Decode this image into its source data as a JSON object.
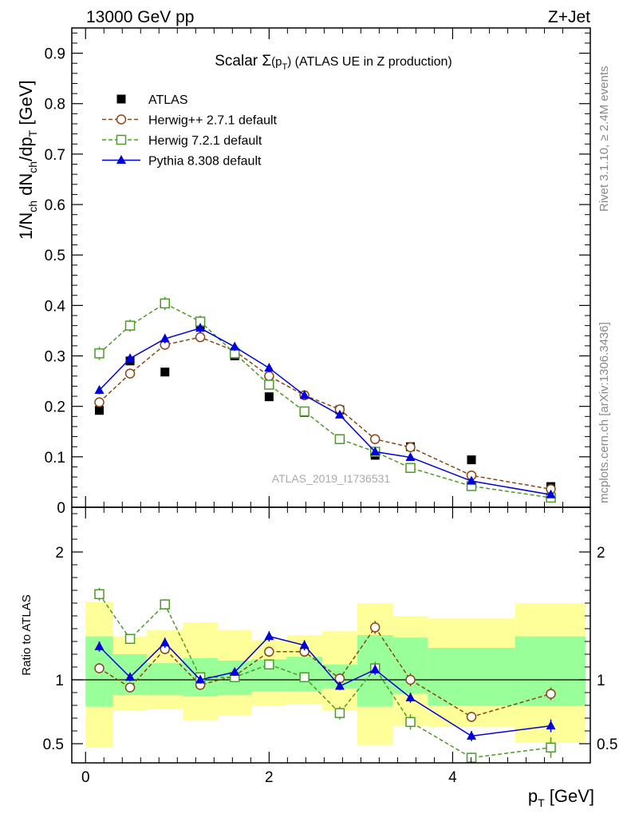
{
  "header": {
    "left": "13000 GeV pp",
    "right": "Z+Jet"
  },
  "side_labels": {
    "rivet": "Rivet 3.1.10, ≥ 2.4M events",
    "mcplots": "mcplots.cern.ch [arXiv:1306.3436]"
  },
  "watermark": "ATLAS_2019_I1736531",
  "chart_data": [
    {
      "type": "line",
      "panel": "main",
      "title": "Scalar Σ(pT) (ATLAS UE in Z production)",
      "title_parts": {
        "prefix": "Scalar ",
        "sigma": "Σ",
        "arg_open": "(p",
        "arg_sub": "T",
        "arg_close": ")",
        "suffix": " (ATLAS UE in Z production)"
      },
      "xlabel": "pT [GeV]",
      "xlabel_parts": {
        "main": "p",
        "sub": "T",
        "unit": " [GeV]"
      },
      "ylabel": "1/Nch dNch/dpT [GeV]",
      "xlim": [
        -0.15,
        5.5
      ],
      "ylim": [
        0,
        0.95
      ],
      "yticks": [
        0.1,
        0.2,
        0.3,
        0.4,
        0.5,
        0.6,
        0.7,
        0.8,
        0.9
      ],
      "ytick_labels": [
        "0.1",
        "0.2",
        "0.3",
        "0.4",
        "0.5",
        "0.6",
        "0.7",
        "0.8",
        "0.9"
      ],
      "ytick_zero_label": "0",
      "x": [
        0.15,
        0.485,
        0.865,
        1.25,
        1.625,
        2.0,
        2.385,
        2.77,
        3.155,
        3.54,
        4.205,
        5.07
      ],
      "legend_position": "top-left",
      "series": [
        {
          "name": "ATLAS",
          "label": "ATLAS",
          "color": "#000000",
          "marker": "filled-square",
          "line": "none",
          "values": [
            0.192,
            0.29,
            0.268,
            0.361,
            0.3,
            0.219,
            0.188,
            0.193,
            0.103,
            0.12,
            0.094,
            0.041
          ]
        },
        {
          "name": "Herwig++ 2.7.1 default",
          "label": "Herwig++ 2.7.1 default",
          "color": "#8b4513",
          "marker": "open-circle",
          "line": "dashed",
          "values": [
            0.208,
            0.265,
            0.322,
            0.337,
            0.31,
            0.26,
            0.222,
            0.194,
            0.135,
            0.119,
            0.063,
            0.036
          ],
          "errors": [
            0.007,
            0.007,
            0.008,
            0.008,
            0.008,
            0.007,
            0.006,
            0.006,
            0.005,
            0.005,
            0.004,
            0.003
          ]
        },
        {
          "name": "Herwig 7.2.1 default",
          "label": "Herwig 7.2.1 default",
          "color": "#4c9a2a",
          "marker": "open-square",
          "line": "dashed",
          "values": [
            0.305,
            0.36,
            0.404,
            0.368,
            0.305,
            0.243,
            0.19,
            0.135,
            0.11,
            0.078,
            0.042,
            0.019
          ],
          "errors": [
            0.013,
            0.012,
            0.013,
            0.012,
            0.01,
            0.009,
            0.007,
            0.006,
            0.006,
            0.005,
            0.004,
            0.003
          ]
        },
        {
          "name": "Pythia 8.308 default",
          "label": "Pythia 8.308 default",
          "color": "#0000dd",
          "marker": "filled-triangle",
          "line": "solid",
          "values": [
            0.232,
            0.295,
            0.334,
            0.355,
            0.318,
            0.276,
            0.222,
            0.183,
            0.11,
            0.099,
            0.052,
            0.025
          ],
          "errors": [
            0.008,
            0.008,
            0.009,
            0.009,
            0.008,
            0.008,
            0.007,
            0.006,
            0.005,
            0.005,
            0.004,
            0.003
          ]
        }
      ]
    },
    {
      "type": "line",
      "panel": "ratio",
      "ylabel": "Ratio to ATLAS",
      "xlim": [
        -0.15,
        5.5
      ],
      "ylim": [
        0.35,
        2.35
      ],
      "yticks": [
        0.5,
        1,
        2
      ],
      "ytick_labels": [
        "0.5",
        "1",
        "2"
      ],
      "xticks": [
        0,
        2,
        4
      ],
      "xtick_labels": [
        "0",
        "2",
        "4"
      ],
      "bin_edges": [
        0.0,
        0.3,
        0.67,
        1.06,
        1.44,
        1.81,
        2.19,
        2.58,
        2.96,
        3.35,
        3.73,
        4.68,
        5.45
      ],
      "band_inner": {
        "color": "#99ff99",
        "low": [
          0.79,
          0.88,
          0.88,
          0.87,
          0.88,
          0.91,
          0.91,
          0.93,
          0.79,
          0.89,
          0.8,
          0.8
        ],
        "high": [
          1.34,
          1.2,
          1.13,
          1.17,
          1.15,
          1.16,
          1.18,
          1.12,
          1.35,
          1.33,
          1.25,
          1.34
        ]
      },
      "band_outer": {
        "color": "#ffff99",
        "low": [
          0.47,
          0.76,
          0.77,
          0.68,
          0.72,
          0.8,
          0.81,
          0.76,
          0.49,
          0.64,
          0.63,
          0.51
        ],
        "high": [
          1.61,
          1.34,
          1.39,
          1.45,
          1.39,
          1.31,
          1.35,
          1.38,
          1.6,
          1.5,
          1.48,
          1.6
        ]
      },
      "reference_line": 1,
      "series": [
        {
          "name": "Herwig++ 2.7.1 default",
          "color": "#8b4513",
          "marker": "open-circle",
          "line": "dashed",
          "values": [
            1.09,
            0.94,
            1.24,
            0.96,
            1.03,
            1.22,
            1.22,
            1.01,
            1.41,
            1.0,
            0.71,
            0.89
          ],
          "errors": [
            0.04,
            0.03,
            0.04,
            0.03,
            0.03,
            0.04,
            0.04,
            0.04,
            0.05,
            0.05,
            0.04,
            0.05
          ]
        },
        {
          "name": "Herwig 7.2.1 default",
          "color": "#4c9a2a",
          "marker": "open-square",
          "line": "dashed",
          "values": [
            1.67,
            1.32,
            1.59,
            1.02,
            1.02,
            1.12,
            1.02,
            0.74,
            1.09,
            0.67,
            0.39,
            0.47
          ],
          "errors": [
            0.05,
            0.04,
            0.04,
            0.03,
            0.03,
            0.04,
            0.04,
            0.05,
            0.05,
            0.06,
            0.04,
            0.08
          ]
        },
        {
          "name": "Pythia 8.308 default",
          "color": "#0000dd",
          "marker": "filled-triangle",
          "line": "solid",
          "values": [
            1.26,
            1.02,
            1.29,
            1.0,
            1.06,
            1.34,
            1.27,
            0.95,
            1.08,
            0.86,
            0.56,
            0.64
          ],
          "errors": [
            0.04,
            0.03,
            0.04,
            0.03,
            0.03,
            0.04,
            0.04,
            0.03,
            0.04,
            0.04,
            0.04,
            0.05
          ]
        }
      ]
    }
  ]
}
